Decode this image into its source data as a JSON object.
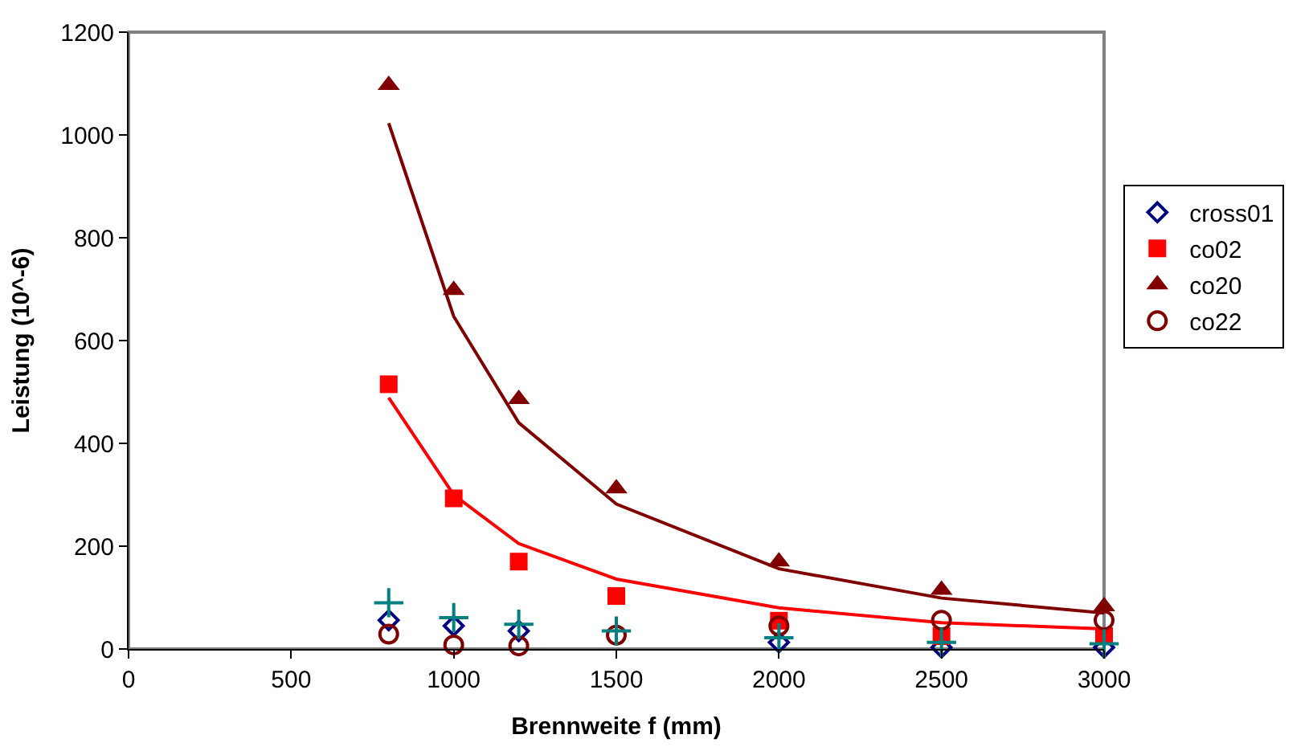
{
  "chart_data": {
    "type": "scatter",
    "xlabel": "Brennweite f (mm)",
    "ylabel": "Leistung (10^-6)",
    "x": [
      800,
      1000,
      1200,
      1500,
      2000,
      2500,
      3000
    ],
    "xlim": [
      0,
      3000
    ],
    "xticks": [
      0,
      500,
      1000,
      1500,
      2000,
      2500,
      3000
    ],
    "ylim": [
      0,
      1200
    ],
    "yticks": [
      0,
      200,
      400,
      600,
      800,
      1000,
      1200
    ],
    "grid": false,
    "legend": "right",
    "series": [
      {
        "type": "line",
        "color": "#800000",
        "values": [
          1023,
          647,
          440,
          282,
          156,
          99,
          70
        ],
        "marker": "none"
      },
      {
        "type": "line",
        "color": "#ff0000",
        "values": [
          489,
          300,
          205,
          136,
          80,
          51,
          39
        ],
        "marker": "none"
      },
      {
        "name": "cross01",
        "color": "#000080",
        "marker": "diamond",
        "values": [
          56,
          45,
          35,
          null,
          13,
          3,
          3
        ]
      },
      {
        "name": "co02",
        "color": "#ff0000",
        "marker": "square",
        "values": [
          515,
          293,
          170,
          103,
          55,
          25,
          25
        ]
      },
      {
        "name": "co20",
        "color": "#800000",
        "marker": "triangle",
        "values": [
          1097,
          698,
          486,
          312,
          170,
          115,
          83
        ]
      },
      {
        "name": "co22",
        "color": "#800000",
        "marker": "circle",
        "values": [
          29,
          8,
          6,
          27,
          45,
          56,
          56
        ]
      },
      {
        "color": "#008080",
        "marker": "cross",
        "values": [
          90,
          61,
          48,
          35,
          22,
          13,
          10
        ]
      }
    ]
  }
}
